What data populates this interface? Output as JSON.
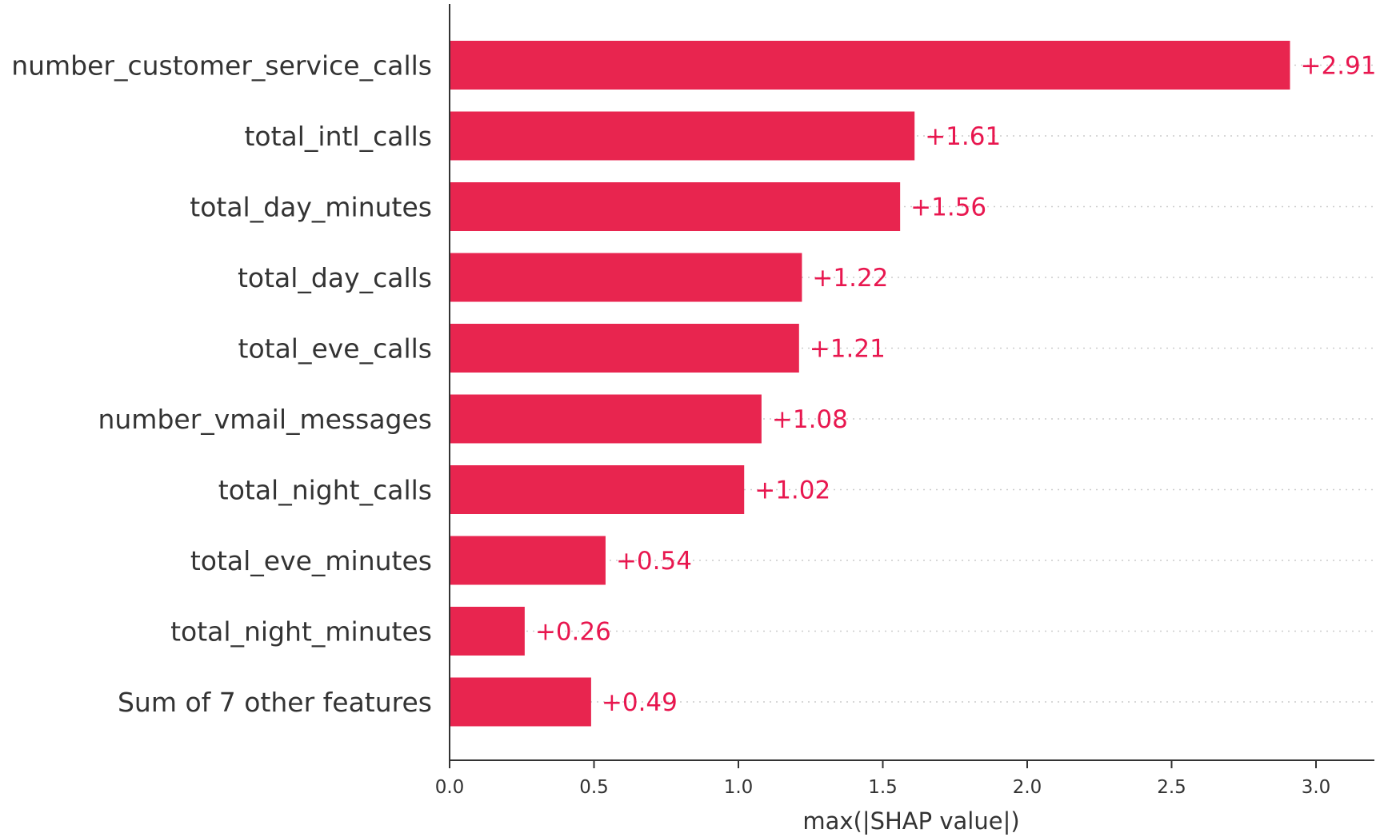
{
  "chart_data": {
    "type": "bar",
    "orientation": "horizontal",
    "categories": [
      "number_customer_service_calls",
      "total_intl_calls",
      "total_day_minutes",
      "total_day_calls",
      "total_eve_calls",
      "number_vmail_messages",
      "total_night_calls",
      "total_eve_minutes",
      "total_night_minutes",
      "Sum of 7 other features"
    ],
    "values": [
      2.91,
      1.61,
      1.56,
      1.22,
      1.21,
      1.08,
      1.02,
      0.54,
      0.26,
      0.49
    ],
    "value_labels": [
      "+2.91",
      "+1.61",
      "+1.56",
      "+1.22",
      "+1.21",
      "+1.08",
      "+1.02",
      "+0.54",
      "+0.26",
      "+0.49"
    ],
    "xlabel": "max(|SHAP value|)",
    "xlim": [
      0,
      3.2
    ],
    "xticks": [
      0.0,
      0.5,
      1.0,
      1.5,
      2.0,
      2.5,
      3.0
    ],
    "xtick_labels": [
      "0.0",
      "0.5",
      "1.0",
      "1.5",
      "2.0",
      "2.5",
      "3.0"
    ],
    "grid": "horizontal dotted lines per bar",
    "colors": {
      "bar": "#e8254f",
      "value_label": "#e8174f",
      "axis": "#333333"
    }
  }
}
